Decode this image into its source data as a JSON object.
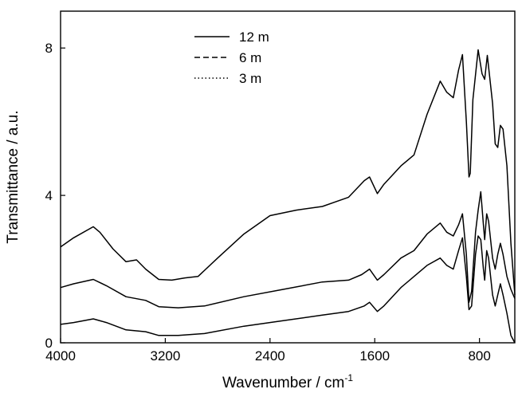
{
  "chart_data": {
    "type": "line",
    "title": "",
    "xlabel": "Wavenumber / cm",
    "xlabel_superscript": "-1",
    "ylabel": "Transmittance / a.u.",
    "xlim": [
      4000,
      530
    ],
    "ylim": [
      0,
      9
    ],
    "x_reversed": true,
    "x_ticks": [
      4000,
      3200,
      2400,
      1600,
      800
    ],
    "x_tick_labels": [
      "4000",
      "3200",
      "2400",
      "1600",
      "800"
    ],
    "y_ticks": [
      0,
      4,
      8
    ],
    "y_tick_labels": [
      "0",
      "4",
      "8"
    ],
    "grid": false,
    "legend_position": "top-left",
    "series": [
      {
        "name": "12 m",
        "style": "solid",
        "points": [
          [
            4000,
            2.6
          ],
          [
            3900,
            2.85
          ],
          [
            3750,
            3.15
          ],
          [
            3700,
            3.0
          ],
          [
            3600,
            2.55
          ],
          [
            3500,
            2.2
          ],
          [
            3420,
            2.25
          ],
          [
            3350,
            2.0
          ],
          [
            3250,
            1.72
          ],
          [
            3150,
            1.7
          ],
          [
            3050,
            1.76
          ],
          [
            2950,
            1.8
          ],
          [
            2800,
            2.3
          ],
          [
            2600,
            2.95
          ],
          [
            2400,
            3.45
          ],
          [
            2200,
            3.6
          ],
          [
            2000,
            3.7
          ],
          [
            1800,
            3.95
          ],
          [
            1680,
            4.4
          ],
          [
            1640,
            4.5
          ],
          [
            1580,
            4.05
          ],
          [
            1530,
            4.3
          ],
          [
            1400,
            4.8
          ],
          [
            1300,
            5.1
          ],
          [
            1200,
            6.2
          ],
          [
            1100,
            7.1
          ],
          [
            1050,
            6.8
          ],
          [
            1000,
            6.65
          ],
          [
            960,
            7.4
          ],
          [
            930,
            7.82
          ],
          [
            900,
            6.0
          ],
          [
            880,
            4.5
          ],
          [
            870,
            4.6
          ],
          [
            850,
            6.6
          ],
          [
            810,
            7.95
          ],
          [
            780,
            7.3
          ],
          [
            760,
            7.15
          ],
          [
            740,
            7.8
          ],
          [
            700,
            6.5
          ],
          [
            680,
            5.4
          ],
          [
            660,
            5.3
          ],
          [
            640,
            5.9
          ],
          [
            620,
            5.8
          ],
          [
            590,
            4.8
          ],
          [
            560,
            2.7
          ],
          [
            530,
            1.3
          ]
        ]
      },
      {
        "name": "6 m",
        "style": "dashed",
        "points": [
          [
            4000,
            1.5
          ],
          [
            3900,
            1.6
          ],
          [
            3750,
            1.72
          ],
          [
            3650,
            1.55
          ],
          [
            3500,
            1.25
          ],
          [
            3350,
            1.15
          ],
          [
            3250,
            0.98
          ],
          [
            3100,
            0.95
          ],
          [
            2900,
            1.0
          ],
          [
            2600,
            1.25
          ],
          [
            2300,
            1.45
          ],
          [
            2000,
            1.65
          ],
          [
            1800,
            1.7
          ],
          [
            1700,
            1.85
          ],
          [
            1640,
            2.0
          ],
          [
            1580,
            1.7
          ],
          [
            1530,
            1.85
          ],
          [
            1400,
            2.3
          ],
          [
            1300,
            2.5
          ],
          [
            1200,
            2.95
          ],
          [
            1100,
            3.25
          ],
          [
            1050,
            3.0
          ],
          [
            1000,
            2.9
          ],
          [
            960,
            3.2
          ],
          [
            930,
            3.5
          ],
          [
            900,
            2.4
          ],
          [
            880,
            1.1
          ],
          [
            860,
            1.4
          ],
          [
            830,
            3.0
          ],
          [
            810,
            3.6
          ],
          [
            790,
            4.1
          ],
          [
            770,
            3.2
          ],
          [
            760,
            2.8
          ],
          [
            745,
            3.5
          ],
          [
            730,
            3.3
          ],
          [
            700,
            2.3
          ],
          [
            680,
            2.0
          ],
          [
            660,
            2.4
          ],
          [
            640,
            2.7
          ],
          [
            620,
            2.4
          ],
          [
            590,
            1.8
          ],
          [
            560,
            1.45
          ],
          [
            530,
            1.2
          ]
        ]
      },
      {
        "name": "3 m",
        "style": "dotted",
        "points": [
          [
            4000,
            0.5
          ],
          [
            3900,
            0.55
          ],
          [
            3750,
            0.65
          ],
          [
            3650,
            0.55
          ],
          [
            3500,
            0.35
          ],
          [
            3350,
            0.3
          ],
          [
            3250,
            0.2
          ],
          [
            3100,
            0.2
          ],
          [
            2900,
            0.25
          ],
          [
            2600,
            0.45
          ],
          [
            2300,
            0.6
          ],
          [
            2000,
            0.75
          ],
          [
            1800,
            0.85
          ],
          [
            1680,
            1.0
          ],
          [
            1640,
            1.1
          ],
          [
            1580,
            0.85
          ],
          [
            1530,
            1.0
          ],
          [
            1400,
            1.5
          ],
          [
            1300,
            1.8
          ],
          [
            1200,
            2.1
          ],
          [
            1100,
            2.3
          ],
          [
            1050,
            2.1
          ],
          [
            1000,
            2.0
          ],
          [
            960,
            2.5
          ],
          [
            930,
            2.85
          ],
          [
            900,
            1.8
          ],
          [
            880,
            0.9
          ],
          [
            860,
            1.0
          ],
          [
            830,
            2.4
          ],
          [
            810,
            2.9
          ],
          [
            790,
            2.8
          ],
          [
            770,
            2.0
          ],
          [
            760,
            1.7
          ],
          [
            745,
            2.5
          ],
          [
            730,
            2.3
          ],
          [
            700,
            1.3
          ],
          [
            680,
            1.0
          ],
          [
            660,
            1.3
          ],
          [
            640,
            1.6
          ],
          [
            620,
            1.3
          ],
          [
            590,
            0.8
          ],
          [
            560,
            0.2
          ],
          [
            530,
            0.0
          ]
        ]
      }
    ]
  }
}
